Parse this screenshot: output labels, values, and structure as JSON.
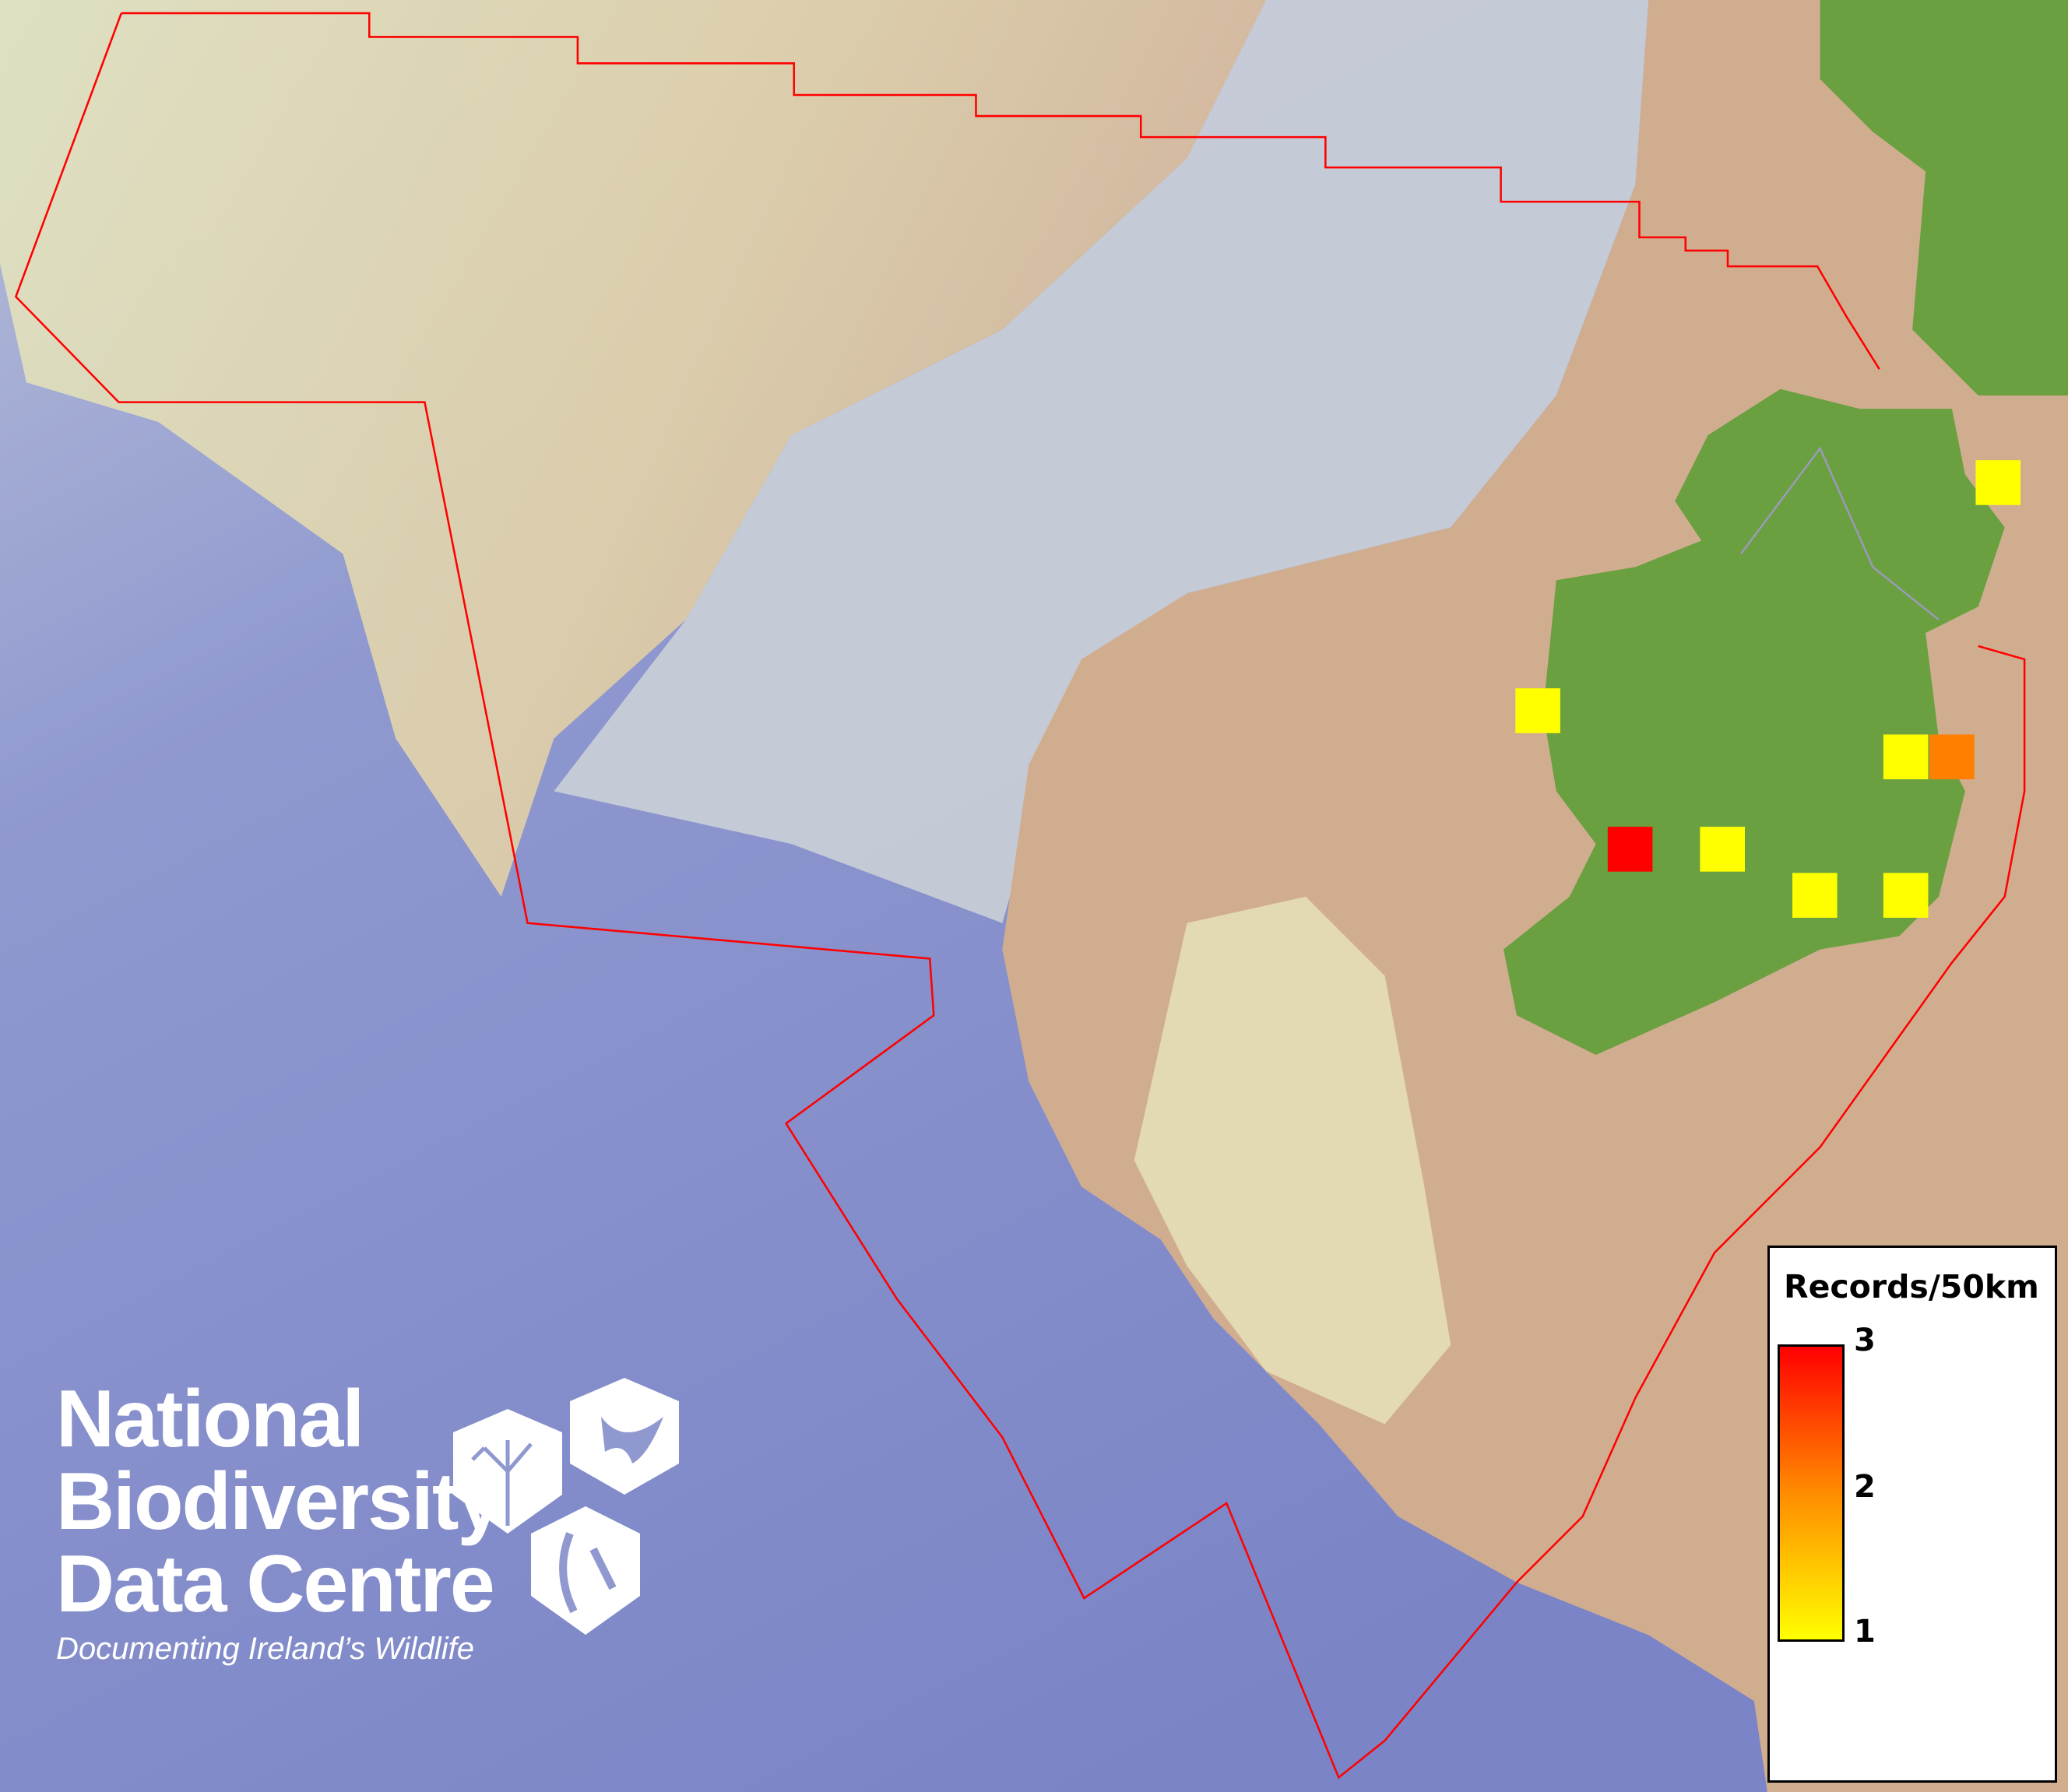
{
  "map": {
    "colors": {
      "sea_deep": "#7b86c8",
      "sea_shelf": "#c9cfd8",
      "shelf_shallow": "#e4e3b4",
      "land_shelf": "#d2ad90",
      "land": "#6aa040",
      "boundary": "#ff0000"
    },
    "grid_squares": [
      {
        "records": 1,
        "color": "#ffff00"
      },
      {
        "records": 1,
        "color": "#ffff00"
      },
      {
        "records": 1,
        "color": "#ffff00"
      },
      {
        "records": 2,
        "color": "#ff8000"
      },
      {
        "records": 3,
        "color": "#ff0000"
      },
      {
        "records": 1,
        "color": "#ffff00"
      },
      {
        "records": 1,
        "color": "#ffff00"
      },
      {
        "records": 1,
        "color": "#ffff00"
      }
    ]
  },
  "legend": {
    "title": "Records/50km",
    "max": "3",
    "mid": "2",
    "min": "1",
    "colors": [
      "#ffff00",
      "#ff8c00",
      "#ff0000"
    ]
  },
  "logo": {
    "line1": "National",
    "line2": "Biodiversity",
    "line3": "Data Centre",
    "tagline": "Documenting Ireland’s Wildlife",
    "icons": [
      "tree-icon",
      "butterfly-icon",
      "seahorse-icon"
    ]
  }
}
